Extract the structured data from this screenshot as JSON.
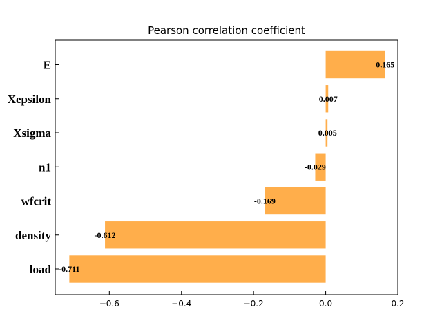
{
  "chart_data": {
    "type": "bar",
    "orientation": "horizontal",
    "title": "Pearson correlation coefficient",
    "xlabel": "",
    "ylabel": "",
    "categories": [
      "load",
      "density",
      "wfcrit",
      "n1",
      "Xsigma",
      "Xepsilon",
      "E"
    ],
    "values": [
      -0.711,
      -0.612,
      -0.169,
      -0.029,
      0.005,
      0.007,
      0.165
    ],
    "value_labels": [
      "-0.711",
      "-0.612",
      "-0.169",
      "-0.029",
      "0.005",
      "0.007",
      "0.165"
    ],
    "xlim": [
      -0.75,
      0.2
    ],
    "xticks": [
      -0.6,
      -0.4,
      -0.2,
      0.0,
      0.2
    ],
    "xtick_labels": [
      "−0.6",
      "−0.4",
      "−0.2",
      "0.0",
      "0.2"
    ],
    "bar_color": "#ffae4b",
    "grid": false,
    "legend": "none"
  }
}
